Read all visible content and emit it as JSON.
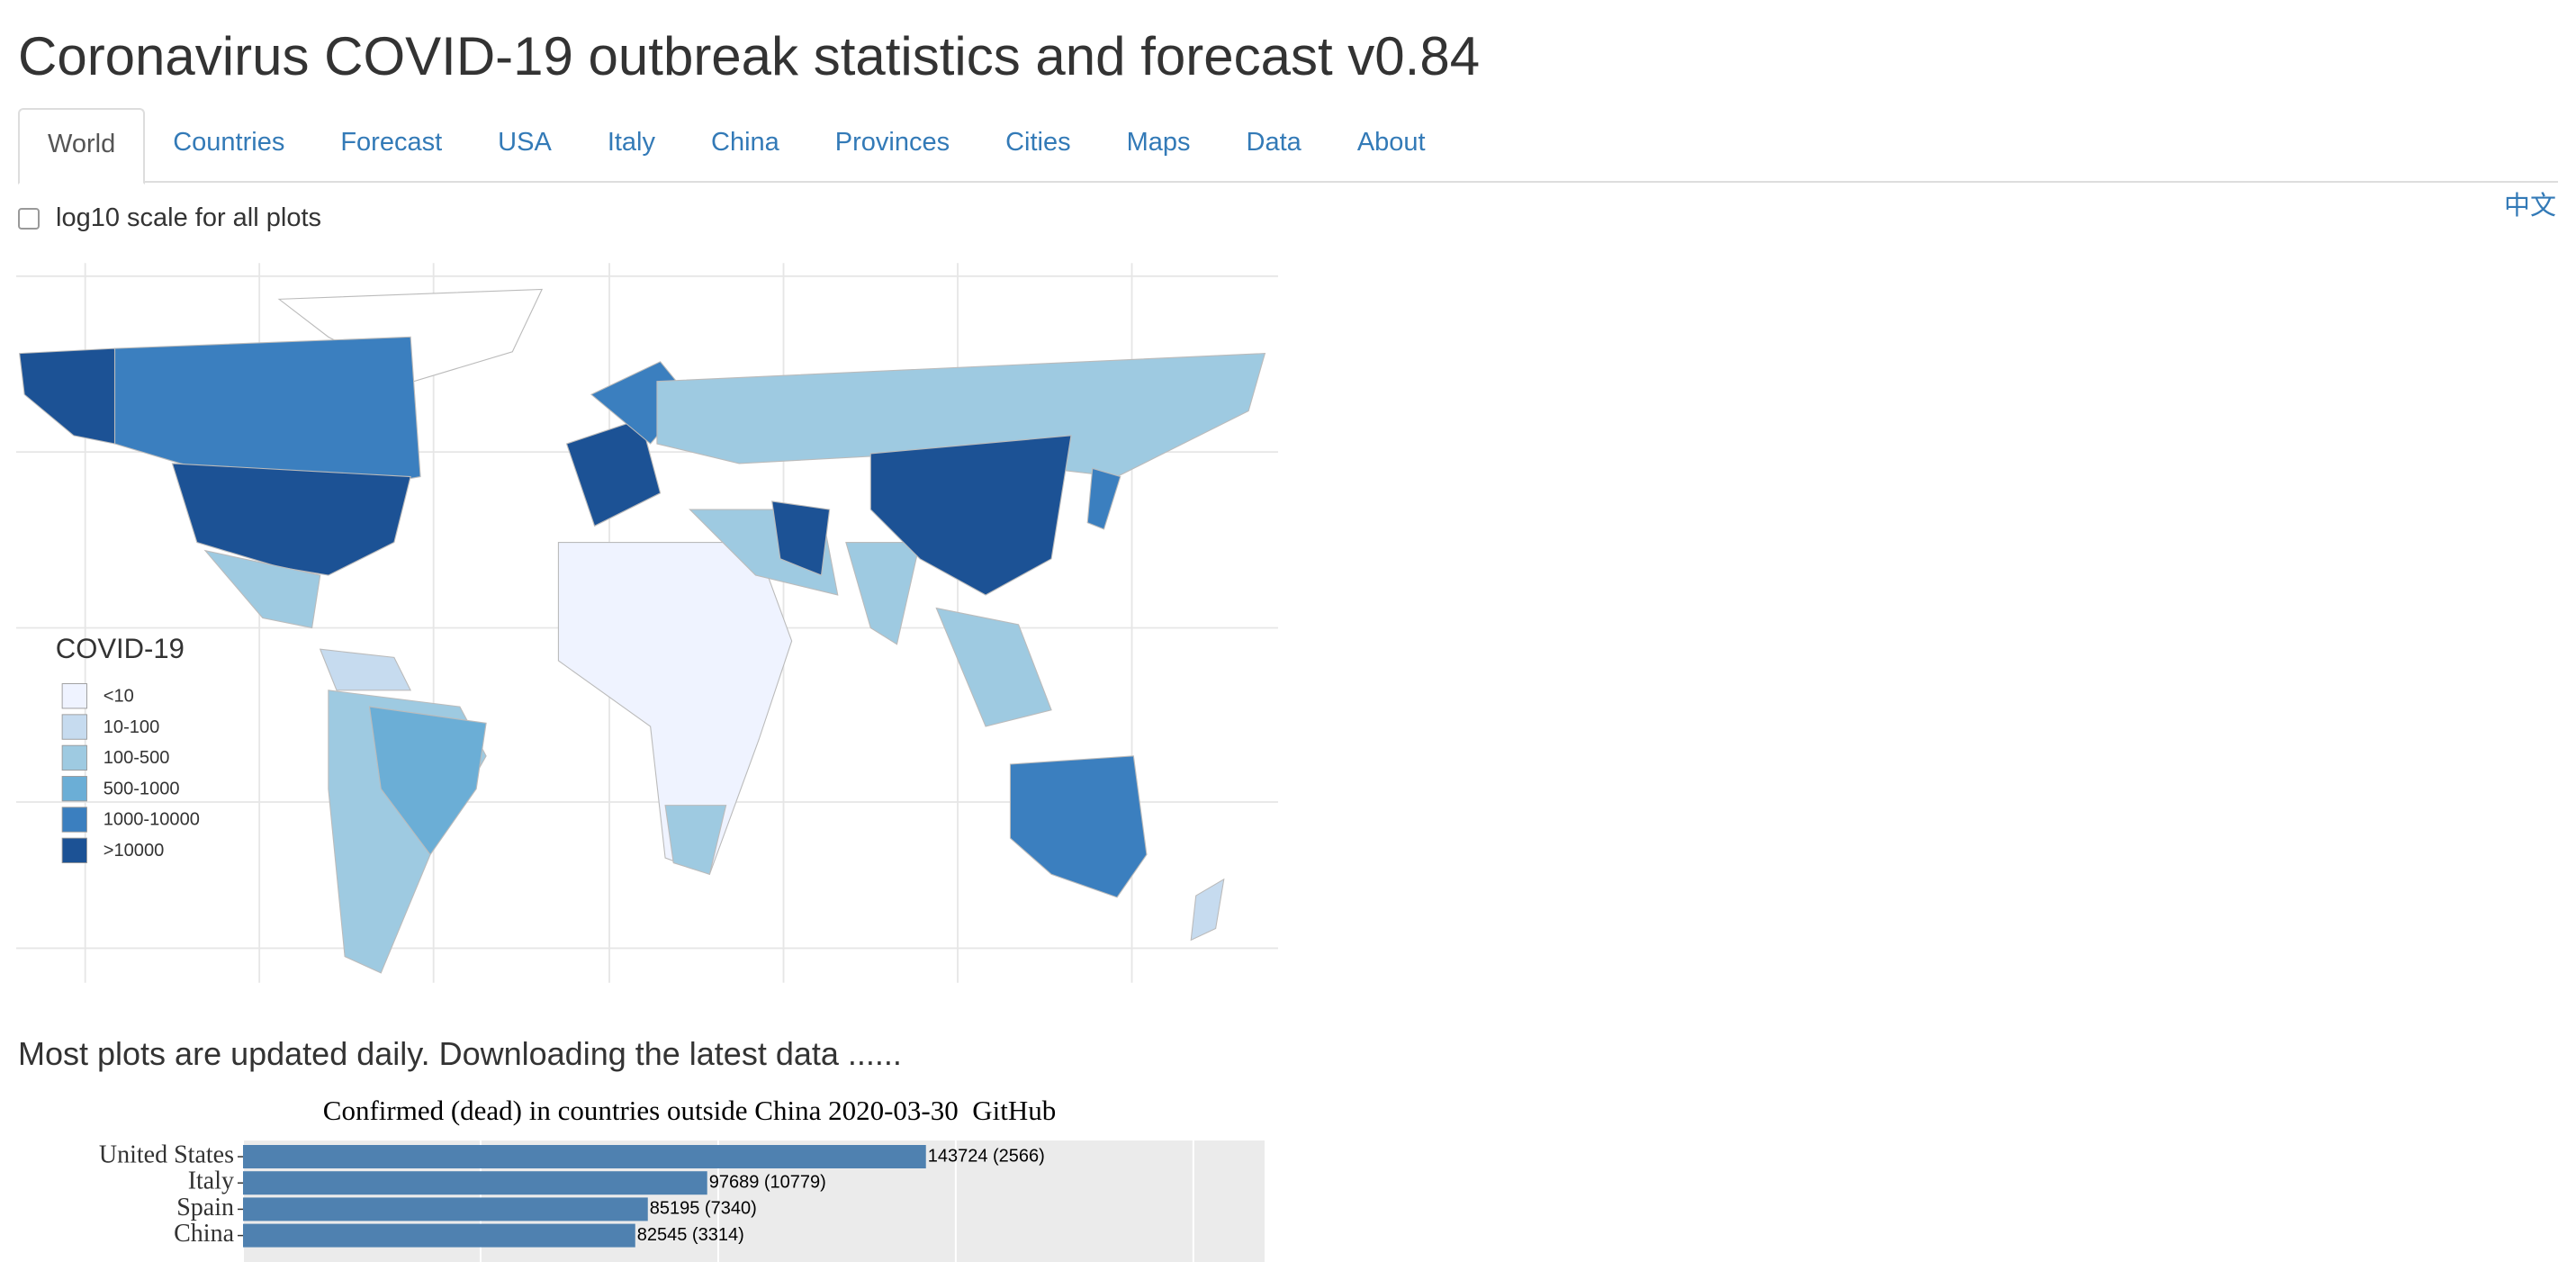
{
  "header": {
    "title": "Coronavirus COVID-19 outbreak statistics and forecast v0.84",
    "tabs": [
      "World",
      "Countries",
      "Forecast",
      "USA",
      "Italy",
      "China",
      "Provinces",
      "Cities",
      "Maps",
      "Data",
      "About"
    ],
    "language_link": "中文",
    "log_checkbox": "log10 scale for all plots"
  },
  "map": {
    "legend": {
      "title": "COVID-19",
      "items": [
        {
          "label": "<10",
          "color": "#eff3ff"
        },
        {
          "label": "10-100",
          "color": "#c6dbef"
        },
        {
          "label": "100-500",
          "color": "#9ecae1"
        },
        {
          "label": "500-1000",
          "color": "#6baed6"
        },
        {
          "label": "1000-10000",
          "color": "#3b7fbf"
        },
        {
          "label": ">10000",
          "color": "#1c5295"
        }
      ]
    }
  },
  "status": "Most plots are updated daily. Downloading the latest data ......",
  "chart_data": {
    "type": "bar",
    "orientation": "horizontal",
    "title": "Confirmed (dead) in countries outside China 2020-03-30  GitHub",
    "categories": [
      "United States",
      "Italy",
      "Spain",
      "China"
    ],
    "values": [
      143724,
      97689,
      85195,
      82545
    ],
    "value_labels": [
      "143724 (2566)",
      "97689 (10779)",
      "85195 (7340)",
      "82545 (3314)"
    ],
    "color": "#4f81b0",
    "xlim": [
      0,
      215000
    ],
    "xticks": [
      0,
      50000,
      100000,
      150000,
      200000
    ],
    "grid": true
  }
}
